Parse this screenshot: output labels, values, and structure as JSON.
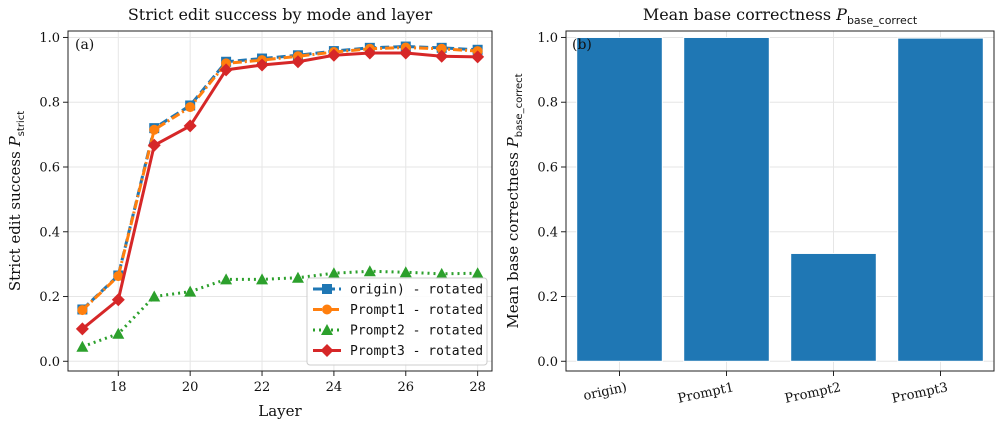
{
  "chart_data": [
    {
      "type": "line",
      "title": "Strict edit success by mode and layer",
      "xlabel": "Layer",
      "ylabel_main": "Strict edit success ",
      "ylabel_var": "P",
      "ylabel_sub": "strict",
      "panel_label": "(a)",
      "xlim": [
        16.6,
        28.4
      ],
      "ylim": [
        -0.03,
        1.02
      ],
      "xticks": [
        18,
        20,
        22,
        24,
        26,
        28
      ],
      "xtick_labels": [
        "18",
        "20",
        "22",
        "24",
        "26",
        "28"
      ],
      "yticks": [
        0.0,
        0.2,
        0.4,
        0.6,
        0.8,
        1.0
      ],
      "ytick_labels": [
        "0.0",
        "0.2",
        "0.4",
        "0.6",
        "0.8",
        "1.0"
      ],
      "grid": true,
      "legend": "lower-right",
      "x": [
        17,
        18,
        19,
        20,
        21,
        22,
        23,
        24,
        25,
        26,
        27,
        28
      ],
      "series": [
        {
          "name": "origin) - rotated",
          "color": "#1f77b4",
          "dash": "dashed",
          "marker": "square",
          "values": [
            0.16,
            0.265,
            0.72,
            0.79,
            0.925,
            0.935,
            0.945,
            0.958,
            0.968,
            0.972,
            0.968,
            0.962
          ]
        },
        {
          "name": "Prompt1 - rotated",
          "color": "#ff7f0e",
          "dash": "dashdot",
          "marker": "circle",
          "values": [
            0.158,
            0.263,
            0.715,
            0.785,
            0.92,
            0.93,
            0.942,
            0.955,
            0.965,
            0.969,
            0.965,
            0.958
          ]
        },
        {
          "name": "Prompt2 - rotated",
          "color": "#2ca02c",
          "dash": "dotted",
          "marker": "triangle",
          "values": [
            0.045,
            0.085,
            0.2,
            0.215,
            0.253,
            0.253,
            0.258,
            0.272,
            0.278,
            0.275,
            0.27,
            0.272
          ]
        },
        {
          "name": "Prompt3 - rotated",
          "color": "#d62728",
          "dash": "solid",
          "marker": "diamond",
          "values": [
            0.1,
            0.19,
            0.667,
            0.727,
            0.9,
            0.915,
            0.925,
            0.945,
            0.952,
            0.952,
            0.942,
            0.94
          ]
        }
      ]
    },
    {
      "type": "bar",
      "title_main": "Mean base correctness ",
      "title_var": "P",
      "title_sub": "base_correct",
      "ylabel_main": "Mean base correctness ",
      "ylabel_var": "P",
      "ylabel_sub": "base_correct",
      "panel_label": "(b)",
      "categories": [
        "origin)",
        "Prompt1",
        "Prompt2",
        "Prompt3"
      ],
      "values": [
        1.0,
        1.0,
        0.333,
        0.998
      ],
      "color": "#1f77b4",
      "ylim": [
        -0.03,
        1.02
      ],
      "yticks": [
        0.0,
        0.2,
        0.4,
        0.6,
        0.8,
        1.0
      ],
      "ytick_labels": [
        "0.0",
        "0.2",
        "0.4",
        "0.6",
        "0.8",
        "1.0"
      ],
      "grid": true
    }
  ]
}
